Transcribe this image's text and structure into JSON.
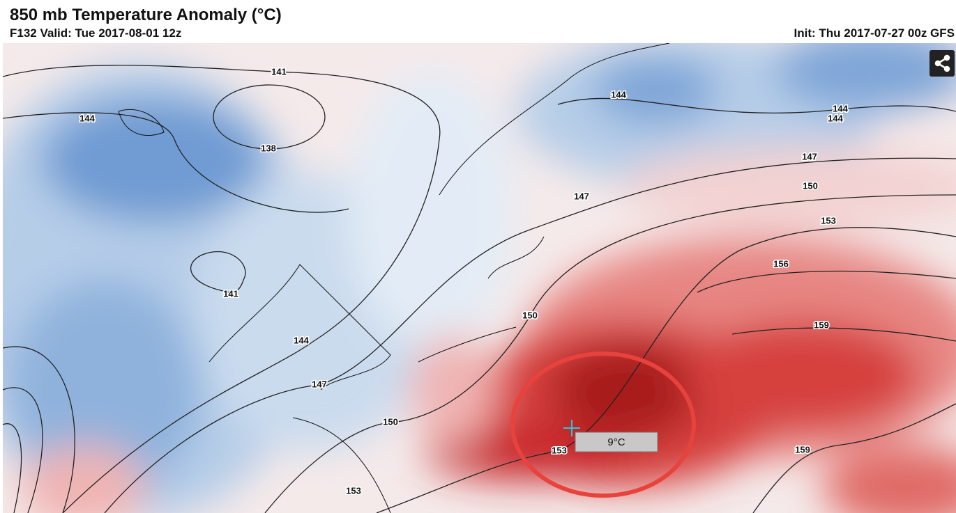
{
  "header": {
    "title": "850 mb Temperature Anomaly (°C)",
    "valid": "F132 Valid: Tue 2017-08-01 12z",
    "init": "Init: Thu 2017-07-27 00z GFS"
  },
  "map": {
    "contour_labels": [
      141,
      144,
      138,
      141,
      144,
      147,
      150,
      153,
      153,
      150,
      147,
      144,
      144,
      144,
      147,
      150,
      153,
      156,
      159,
      159
    ],
    "tooltip": "9°C"
  }
}
